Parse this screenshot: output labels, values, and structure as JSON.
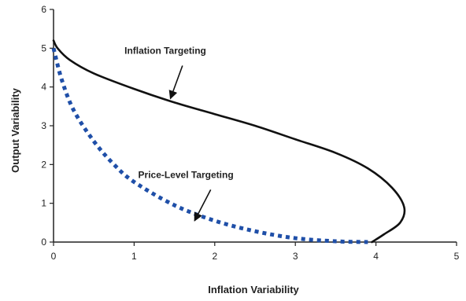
{
  "chart_data": {
    "type": "line",
    "title": "",
    "xlabel": "Inflation Variability",
    "ylabel": "Output Variability",
    "xlim": [
      0,
      5
    ],
    "ylim": [
      0,
      6
    ],
    "x_ticks": [
      "0",
      "1",
      "2",
      "3",
      "4",
      "5"
    ],
    "y_ticks": [
      "0",
      "1",
      "2",
      "3",
      "4",
      "5",
      "6"
    ],
    "grid": false,
    "legend": "none",
    "series": [
      {
        "name": "Inflation Targeting",
        "style": "solid",
        "color": "#111111",
        "points": [
          {
            "x": 0.0,
            "y": 5.2
          },
          {
            "x": 0.05,
            "y": 5.0
          },
          {
            "x": 0.2,
            "y": 4.7
          },
          {
            "x": 0.5,
            "y": 4.35
          },
          {
            "x": 1.0,
            "y": 3.95
          },
          {
            "x": 1.5,
            "y": 3.6
          },
          {
            "x": 2.0,
            "y": 3.3
          },
          {
            "x": 2.5,
            "y": 3.0
          },
          {
            "x": 3.0,
            "y": 2.65
          },
          {
            "x": 3.5,
            "y": 2.3
          },
          {
            "x": 3.9,
            "y": 1.9
          },
          {
            "x": 4.2,
            "y": 1.4
          },
          {
            "x": 4.35,
            "y": 0.9
          },
          {
            "x": 4.3,
            "y": 0.5
          },
          {
            "x": 4.1,
            "y": 0.2
          },
          {
            "x": 3.95,
            "y": 0.0
          }
        ]
      },
      {
        "name": "Price-Level Targeting",
        "style": "dotted",
        "color": "#1f4fa8",
        "points": [
          {
            "x": 0.0,
            "y": 5.0
          },
          {
            "x": 0.1,
            "y": 4.2
          },
          {
            "x": 0.25,
            "y": 3.4
          },
          {
            "x": 0.5,
            "y": 2.6
          },
          {
            "x": 0.75,
            "y": 2.0
          },
          {
            "x": 1.0,
            "y": 1.55
          },
          {
            "x": 1.5,
            "y": 0.95
          },
          {
            "x": 2.0,
            "y": 0.55
          },
          {
            "x": 2.5,
            "y": 0.28
          },
          {
            "x": 3.0,
            "y": 0.1
          },
          {
            "x": 3.5,
            "y": 0.02
          },
          {
            "x": 3.9,
            "y": 0.0
          }
        ]
      }
    ],
    "annotations": [
      {
        "text": "Inflation Targeting",
        "label_at": {
          "x": 0.88,
          "y": 4.85
        },
        "arrow_from": {
          "x": 1.6,
          "y": 4.55
        },
        "arrow_to": {
          "x": 1.45,
          "y": 3.7
        }
      },
      {
        "text": "Price-Level Targeting",
        "label_at": {
          "x": 1.05,
          "y": 1.65
        },
        "arrow_from": {
          "x": 1.95,
          "y": 1.35
        },
        "arrow_to": {
          "x": 1.75,
          "y": 0.55
        }
      }
    ]
  }
}
